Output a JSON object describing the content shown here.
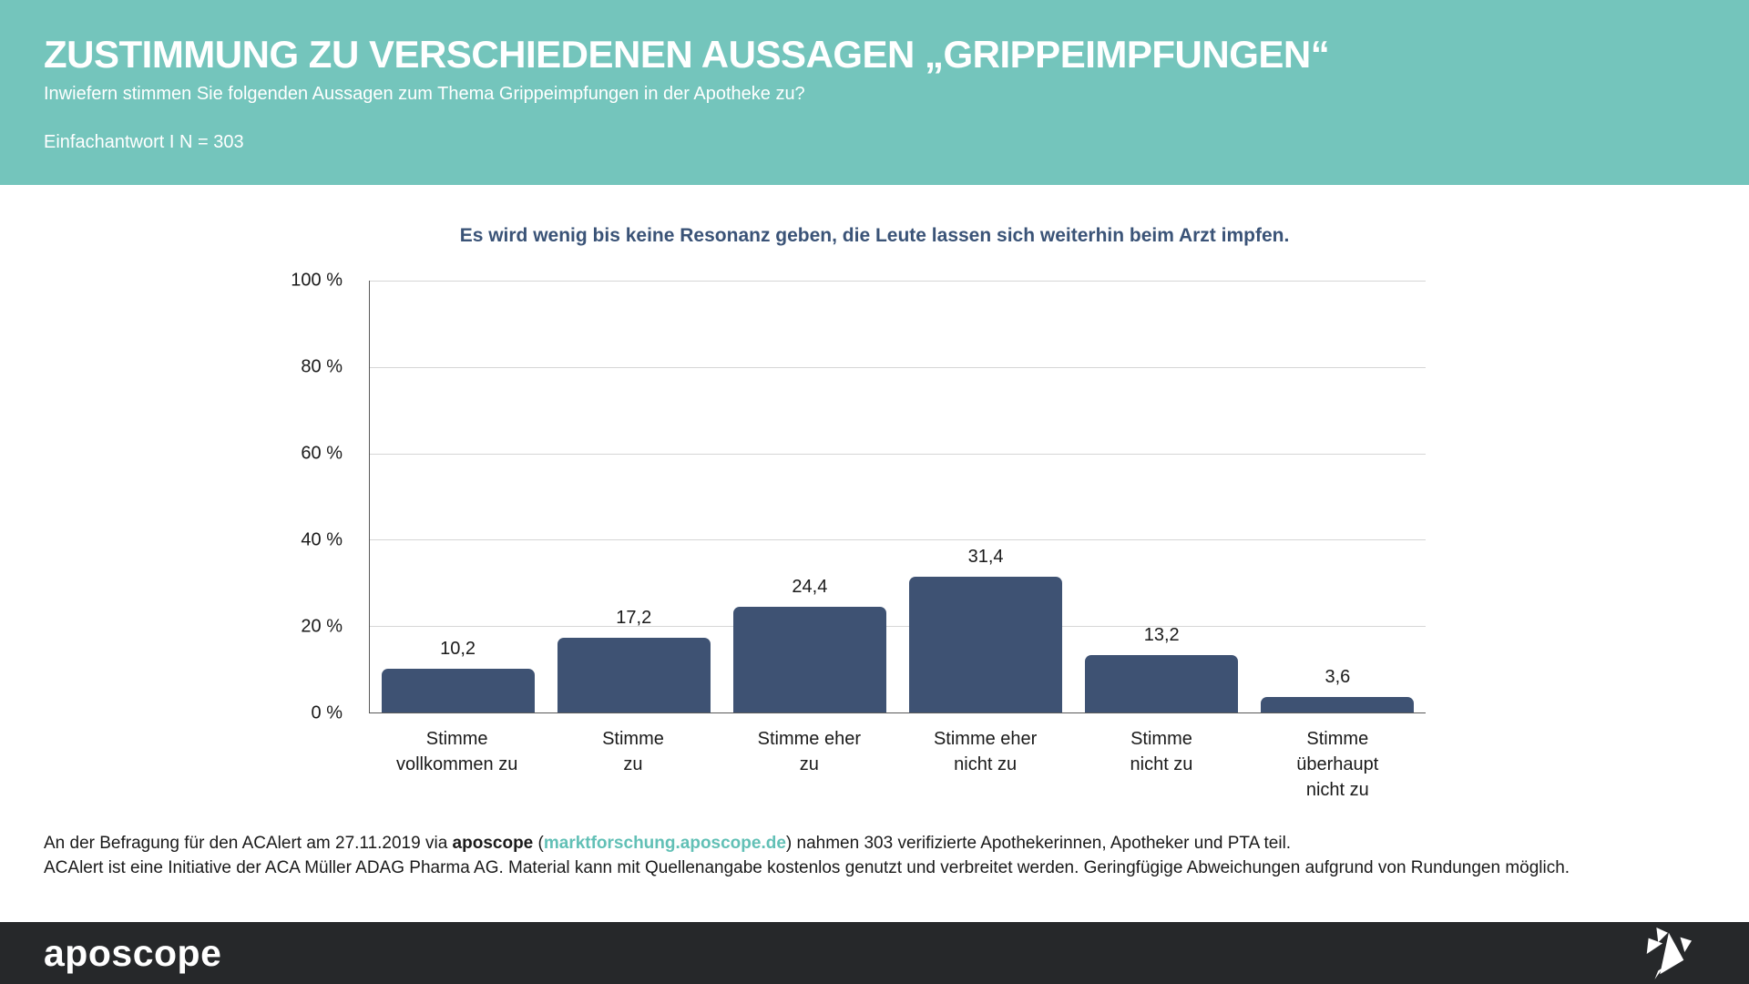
{
  "header": {
    "title": "ZUSTIMMUNG ZU VERSCHIEDENEN AUSSAGEN „GRIPPEIMPFUNGEN“",
    "subtitle": "Inwiefern stimmen Sie folgenden Aussagen zum Thema Grippeimpfungen in der Apotheke zu?",
    "note": "Einfachantwort I N = 303"
  },
  "chart_data": {
    "type": "bar",
    "title": "Es wird wenig bis keine Resonanz geben, die Leute lassen sich weiterhin beim Arzt impfen.",
    "categories": [
      [
        "Stimme",
        "vollkommen zu"
      ],
      [
        "Stimme",
        "zu"
      ],
      [
        "Stimme eher",
        "zu"
      ],
      [
        "Stimme eher",
        "nicht zu"
      ],
      [
        "Stimme",
        "nicht zu"
      ],
      [
        "Stimme",
        "überhaupt",
        "nicht zu"
      ]
    ],
    "values": [
      10.2,
      17.2,
      24.4,
      31.4,
      13.2,
      3.6
    ],
    "value_labels": [
      "10,2",
      "17,2",
      "24,4",
      "31,4",
      "13,2",
      "3,6"
    ],
    "xlabel": "",
    "ylabel": "",
    "ylim": [
      0,
      100
    ],
    "ytick_values": [
      100,
      80,
      60,
      40,
      20,
      0
    ],
    "ytick_labels": [
      "100 %",
      "80 %",
      "60 %",
      "40 %",
      "20 %",
      "0 %"
    ],
    "grid": true,
    "legend": "none",
    "bar_color": "#3e5273"
  },
  "footer": {
    "line1_prefix": "An der Befragung für den ACAlert am 27.11.2019 via ",
    "line1_brand": "aposcope",
    "line1_open": " (",
    "line1_link": "marktforschung.aposcope.de",
    "line1_close": ")",
    "line1_suffix": " nahmen 303 verifizierte Apothekerinnen, Apotheker und PTA teil.",
    "line2": "ACAlert ist eine Initiative der ACA Müller ADAG Pharma AG. Material kann mit Quellenangabe kostenlos genutzt und verbreitet werden. Geringfügige Abweichungen aufgrund von Rundungen möglich."
  },
  "brand": {
    "logo_text": "aposcope",
    "bird_icon": "origami-bird"
  },
  "colors": {
    "header_bg": "#74c5bc",
    "bar": "#3e5273",
    "chart_title": "#3a5377",
    "link": "#62c0b6",
    "brand_bar_bg": "#26282a",
    "gridline": "#d6d6d6",
    "axis": "#595959"
  }
}
